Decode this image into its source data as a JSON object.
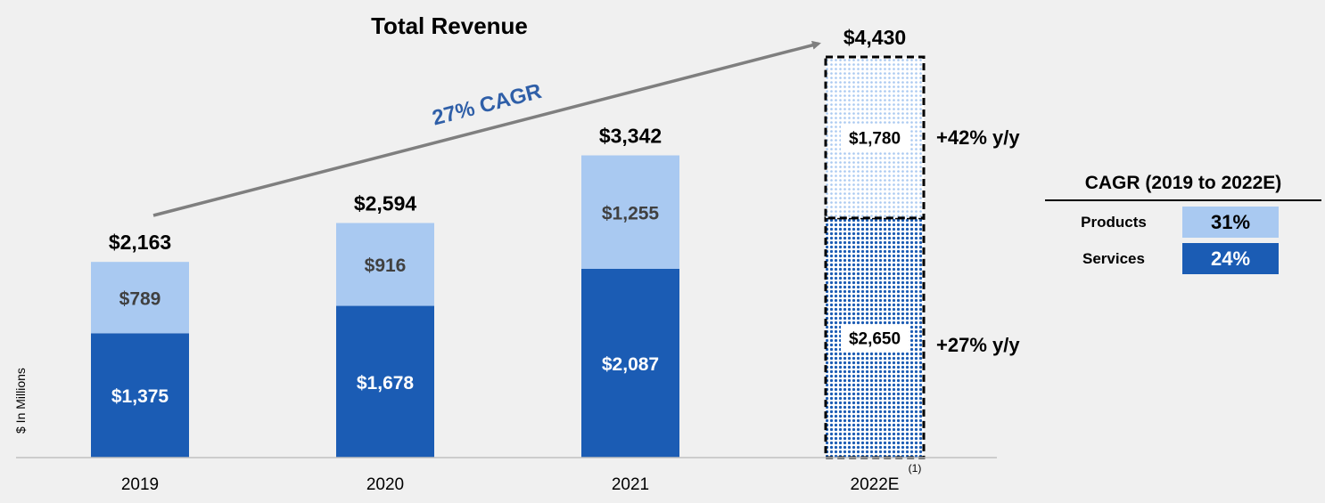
{
  "chart_data": {
    "type": "bar",
    "stacked": true,
    "title": "Total Revenue",
    "ylabel": "$ In Millions",
    "ylim": [
      0,
      4430
    ],
    "categories": [
      "2019",
      "2020",
      "2021",
      "2022E"
    ],
    "category_footnote": [
      "",
      "",
      "",
      "(1)"
    ],
    "series": [
      {
        "values": [
          1375,
          1678,
          2087,
          2650
        ],
        "labels": [
          "$1,375",
          "$1,678",
          "$2,087",
          "$2,650"
        ],
        "color": "#1b5cb4"
      },
      {
        "values": [
          789,
          916,
          1255,
          1780
        ],
        "labels": [
          "$789",
          "$916",
          "$1,255",
          "$1,780"
        ],
        "color": "#a9c9f1"
      }
    ],
    "totals": [
      "$2,163",
      "$2,594",
      "$3,342",
      "$4,430"
    ],
    "estimate_growth": {
      "top": "+42% y/y",
      "bottom": "+27% y/y"
    },
    "trend_annotation": "27% CAGR",
    "cagr_table": {
      "title": "CAGR (2019 to 2022E)",
      "rows": [
        {
          "label": "Products",
          "value": "31%",
          "color": "#a9c9f1"
        },
        {
          "label": "Services",
          "value": "24%",
          "color": "#1b5cb4"
        }
      ]
    }
  }
}
